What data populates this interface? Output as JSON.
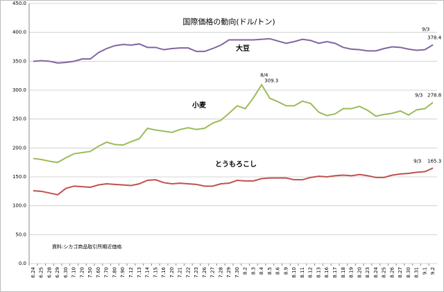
{
  "chart_data": {
    "type": "line",
    "title": "国際価格の動向(ドル/トン)",
    "source": "資料:シカゴ商品取引所期近価格",
    "annotations": [
      "9/3",
      "9/3",
      "9/3",
      "8/4"
    ],
    "categories": [
      "6.24",
      "6.25",
      "6.28",
      "6.29",
      "6.30",
      "7.10",
      "7.20",
      "7.50",
      "7.60",
      "7.70",
      "7.80",
      "7.90",
      "7.12",
      "7.13",
      "7.14",
      "7.15",
      "7.16",
      "7.20",
      "7.21",
      "7.22",
      "7.23",
      "7.26",
      "7.27",
      "7.28",
      "7.29",
      "7.30",
      "8.2",
      "8.3",
      "8.4",
      "8.5",
      "8.6",
      "8.9",
      "8.10",
      "8.11",
      "8.12",
      "8.13",
      "8.16",
      "8.17",
      "8.18",
      "8.19",
      "8.20",
      "8.23",
      "8.24",
      "8.25",
      "8.26",
      "8.27",
      "8.30",
      "8.31",
      "9.1",
      "9.2"
    ],
    "series": [
      {
        "name": "大豆",
        "color": "#8064a2",
        "values": [
          350,
          351,
          350,
          347,
          348,
          350,
          354,
          354,
          365,
          372,
          377,
          379,
          378,
          380,
          374,
          374,
          370,
          372,
          373,
          373,
          367,
          367,
          372,
          378,
          387,
          387,
          387,
          387,
          388,
          389,
          385,
          381,
          384,
          388,
          386,
          381,
          384,
          381,
          374,
          371,
          370,
          368,
          368,
          372,
          375,
          374,
          371,
          369,
          370,
          378.4
        ]
      },
      {
        "name": "小麦",
        "color": "#9bbb59",
        "values": [
          182,
          180,
          177,
          175,
          183,
          190,
          192,
          194,
          203,
          210,
          206,
          205,
          211,
          216,
          234,
          231,
          229,
          227,
          232,
          235,
          232,
          234,
          243,
          248,
          260,
          273,
          268,
          287,
          309.3,
          286,
          280,
          273,
          273,
          281,
          277,
          262,
          256,
          259,
          268,
          268,
          272,
          265,
          255,
          258,
          260,
          264,
          257,
          266,
          268,
          278.8
        ]
      },
      {
        "name": "とうもろこし",
        "color": "#c0504d",
        "values": [
          126,
          125,
          122,
          119,
          130,
          134,
          133,
          132,
          136,
          138,
          137,
          136,
          135,
          138,
          144,
          145,
          140,
          138,
          139,
          138,
          137,
          134,
          134,
          138,
          139,
          144,
          143,
          143,
          147,
          148,
          148,
          148,
          145,
          145,
          149,
          151,
          150,
          152,
          153,
          152,
          154,
          152,
          149,
          149,
          153,
          155,
          156,
          158,
          159,
          165.3
        ]
      }
    ],
    "ylim": [
      0,
      450
    ],
    "yticks": [
      {
        "value": 0,
        "label": "0.0"
      },
      {
        "value": 50,
        "label": "50.0"
      },
      {
        "value": 100,
        "label": "100.0"
      },
      {
        "value": 150,
        "label": "150.0"
      },
      {
        "value": 200,
        "label": "200.0"
      },
      {
        "value": 250,
        "label": "250.0"
      },
      {
        "value": 300,
        "label": "300.0"
      },
      {
        "value": 350,
        "label": "350.0"
      },
      {
        "value": 400,
        "label": "400.0"
      },
      {
        "value": 450,
        "label": "450.0"
      }
    ],
    "grid": true
  }
}
